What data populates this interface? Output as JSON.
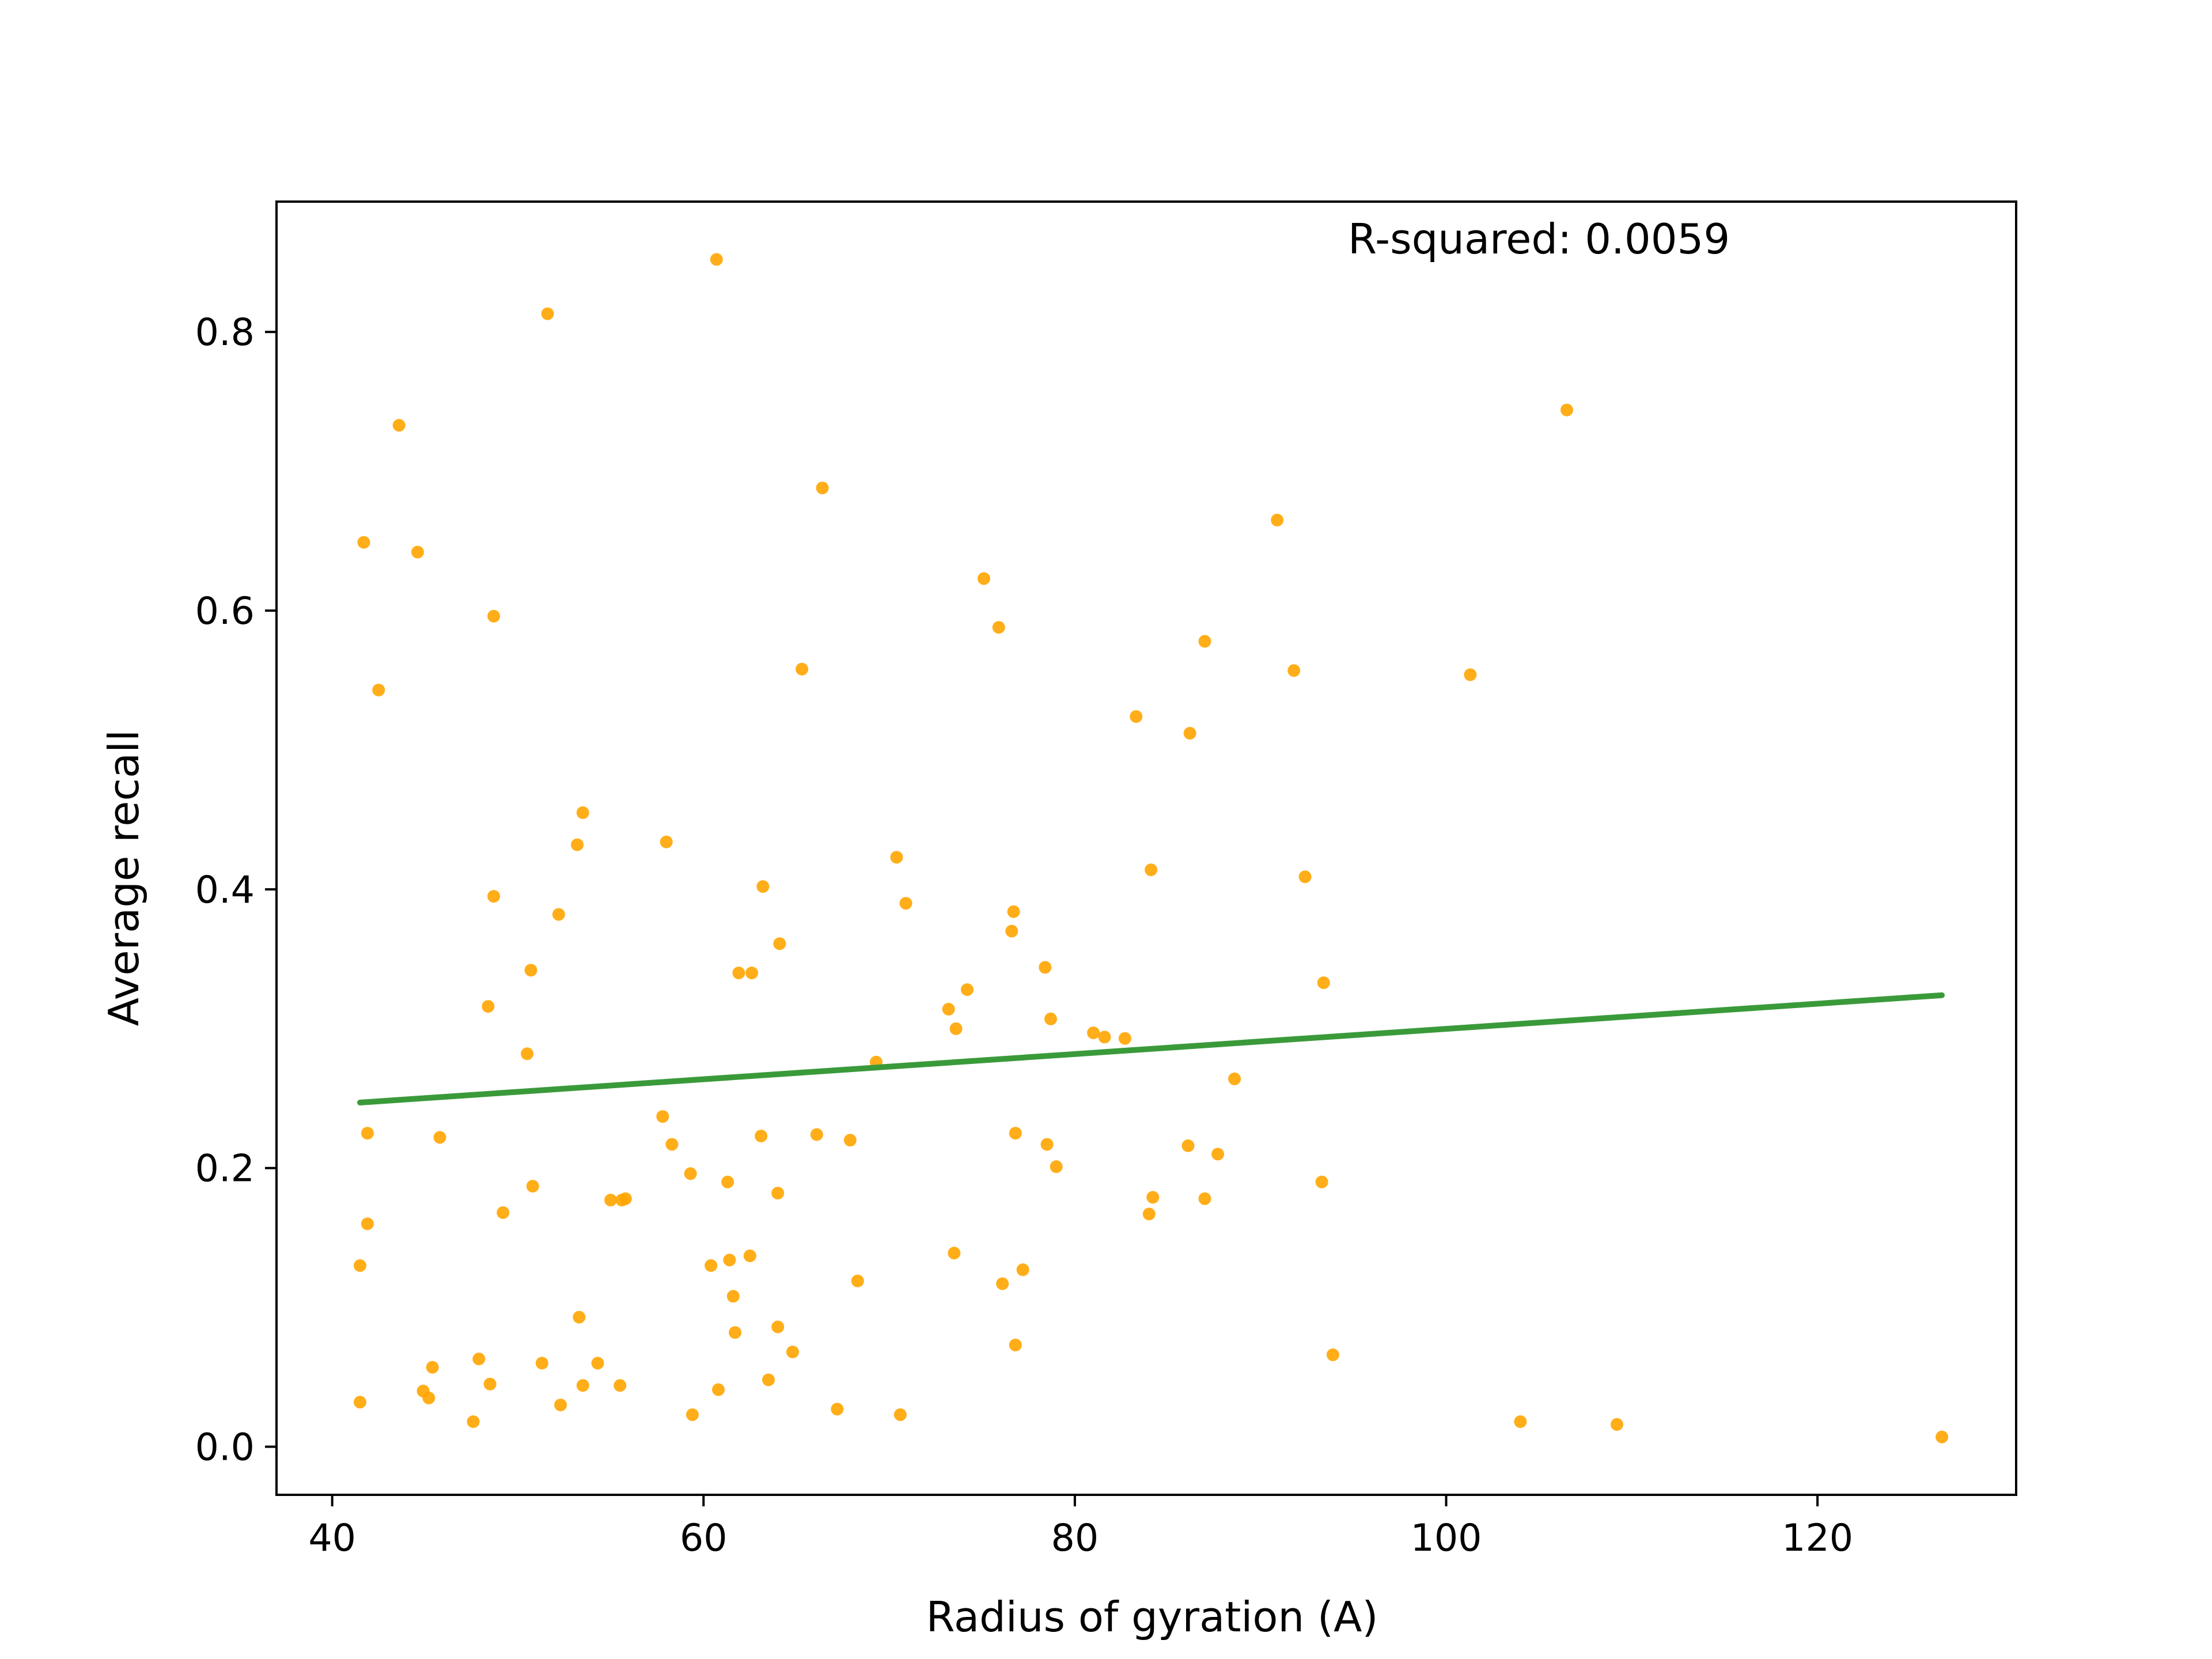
{
  "chart_data": {
    "type": "scatter",
    "title": "",
    "xlabel": "Radius of gyration (A)",
    "ylabel": "Average recall",
    "xlim": [
      37,
      130.7
    ],
    "ylim": [
      -0.0345,
      0.8935
    ],
    "xticks": [
      40,
      60,
      80,
      100,
      120
    ],
    "xtick_labels": [
      "40",
      "60",
      "80",
      "100",
      "120"
    ],
    "yticks": [
      0.0,
      0.2,
      0.4,
      0.6,
      0.8
    ],
    "ytick_labels": [
      "0.0",
      "0.2",
      "0.4",
      "0.6",
      "0.8"
    ],
    "grid": false,
    "annotation": "R-squared: 0.0059",
    "point_color": "#FFA500",
    "line_color": "#3A9A3A",
    "series": [
      {
        "type": "scatter",
        "x": [
          41.5,
          41.7,
          41.9,
          41.5,
          41.9,
          42.5,
          43.6,
          44.6,
          44.9,
          45.2,
          45.4,
          45.8,
          47.6,
          47.9,
          48.4,
          48.5,
          48.7,
          48.7,
          49.2,
          50.5,
          50.7,
          50.8,
          51.3,
          51.6,
          52.2,
          52.3,
          53.2,
          53.3,
          53.5,
          53.5,
          54.3,
          55.0,
          55.5,
          55.6,
          55.8,
          57.8,
          58.0,
          58.3,
          59.3,
          59.4,
          60.4,
          60.7,
          60.8,
          61.3,
          61.4,
          61.6,
          61.7,
          61.9,
          62.5,
          62.6,
          63.1,
          63.2,
          63.5,
          64.0,
          64.0,
          64.1,
          64.8,
          65.3,
          66.1,
          66.4,
          67.2,
          67.9,
          68.3,
          69.3,
          70.4,
          70.6,
          70.9,
          73.2,
          73.5,
          73.6,
          74.2,
          75.1,
          75.9,
          76.1,
          76.6,
          76.7,
          76.8,
          76.8,
          77.2,
          78.4,
          78.5,
          78.7,
          79.0,
          81.0,
          81.6,
          82.7,
          83.3,
          84.0,
          84.1,
          84.2,
          86.1,
          86.2,
          87.0,
          87.0,
          87.7,
          88.6,
          90.9,
          91.8,
          92.4,
          93.3,
          93.4,
          93.9,
          101.3,
          104.0,
          106.5,
          109.2,
          126.7
        ],
        "y": [
          0.032,
          0.649,
          0.16,
          0.13,
          0.225,
          0.543,
          0.733,
          0.642,
          0.04,
          0.035,
          0.057,
          0.222,
          0.018,
          0.063,
          0.316,
          0.045,
          0.395,
          0.596,
          0.168,
          0.282,
          0.342,
          0.187,
          0.06,
          0.813,
          0.382,
          0.03,
          0.432,
          0.093,
          0.455,
          0.044,
          0.06,
          0.177,
          0.044,
          0.177,
          0.178,
          0.237,
          0.434,
          0.217,
          0.196,
          0.023,
          0.13,
          0.852,
          0.041,
          0.19,
          0.134,
          0.108,
          0.082,
          0.34,
          0.137,
          0.34,
          0.223,
          0.402,
          0.048,
          0.182,
          0.086,
          0.361,
          0.068,
          0.558,
          0.224,
          0.688,
          0.027,
          0.22,
          0.119,
          0.276,
          0.423,
          0.023,
          0.39,
          0.314,
          0.139,
          0.3,
          0.328,
          0.623,
          0.588,
          0.117,
          0.37,
          0.384,
          0.225,
          0.073,
          0.127,
          0.344,
          0.217,
          0.307,
          0.201,
          0.297,
          0.294,
          0.293,
          0.524,
          0.167,
          0.414,
          0.179,
          0.216,
          0.512,
          0.578,
          0.178,
          0.21,
          0.264,
          0.665,
          0.557,
          0.409,
          0.19,
          0.333,
          0.066,
          0.554,
          0.018,
          0.744,
          0.016,
          0.007
        ]
      },
      {
        "type": "line",
        "x": [
          41.5,
          126.7
        ],
        "y": [
          0.247,
          0.324
        ]
      }
    ]
  }
}
